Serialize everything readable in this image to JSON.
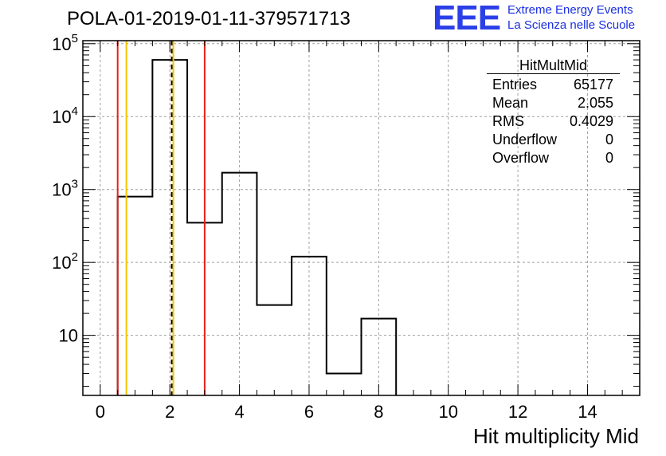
{
  "header": {
    "title": "POLA-01-2019-01-11-379571713",
    "logo": "EEE",
    "logo_line1": "Extreme Energy Events",
    "logo_line2": "La Scienza nelle Scuole"
  },
  "stats": {
    "name": "HitMultMid",
    "rows": [
      {
        "label": "Entries",
        "value": "65177"
      },
      {
        "label": "Mean",
        "value": "2.055"
      },
      {
        "label": "RMS",
        "value": "0.4029"
      },
      {
        "label": "Underflow",
        "value": "0"
      },
      {
        "label": "Overflow",
        "value": "0"
      }
    ]
  },
  "colors": {
    "histogram": "#000000",
    "red_line": "#e8201a",
    "yellow_line": "#f5c400",
    "mean_line": "#000000",
    "grid": "#a0a0a0",
    "logo": "#2b3fe8"
  },
  "chart_data": {
    "type": "bar",
    "histogram": true,
    "title": "POLA-01-2019-01-11-379571713",
    "xlabel": "Hit multiplicity Mid",
    "ylabel": "",
    "xlim": [
      -0.5,
      15.5
    ],
    "ylim": [
      1.5,
      110000
    ],
    "yscale": "log",
    "grid": true,
    "x_ticks": [
      "0",
      "2",
      "4",
      "6",
      "8",
      "10",
      "12",
      "14"
    ],
    "y_ticks": [
      "10",
      "10^2",
      "10^3",
      "10^4",
      "10^5"
    ],
    "bins": [
      {
        "low": 0.5,
        "high": 1.5,
        "value": 800
      },
      {
        "low": 1.5,
        "high": 2.5,
        "value": 60000
      },
      {
        "low": 2.5,
        "high": 3.5,
        "value": 350
      },
      {
        "low": 3.5,
        "high": 4.5,
        "value": 1700
      },
      {
        "low": 4.5,
        "high": 5.5,
        "value": 26
      },
      {
        "low": 5.5,
        "high": 6.5,
        "value": 120
      },
      {
        "low": 6.5,
        "high": 7.5,
        "value": 3
      },
      {
        "low": 7.5,
        "high": 8.5,
        "value": 17
      }
    ],
    "vertical_lines": [
      {
        "x": 0.5,
        "color": "red",
        "style": "solid"
      },
      {
        "x": 0.75,
        "color": "yellow",
        "style": "solid"
      },
      {
        "x": 2.055,
        "color": "black",
        "style": "dashed"
      },
      {
        "x": 2.1,
        "color": "yellow",
        "style": "solid"
      },
      {
        "x": 3.0,
        "color": "red",
        "style": "solid"
      }
    ]
  }
}
